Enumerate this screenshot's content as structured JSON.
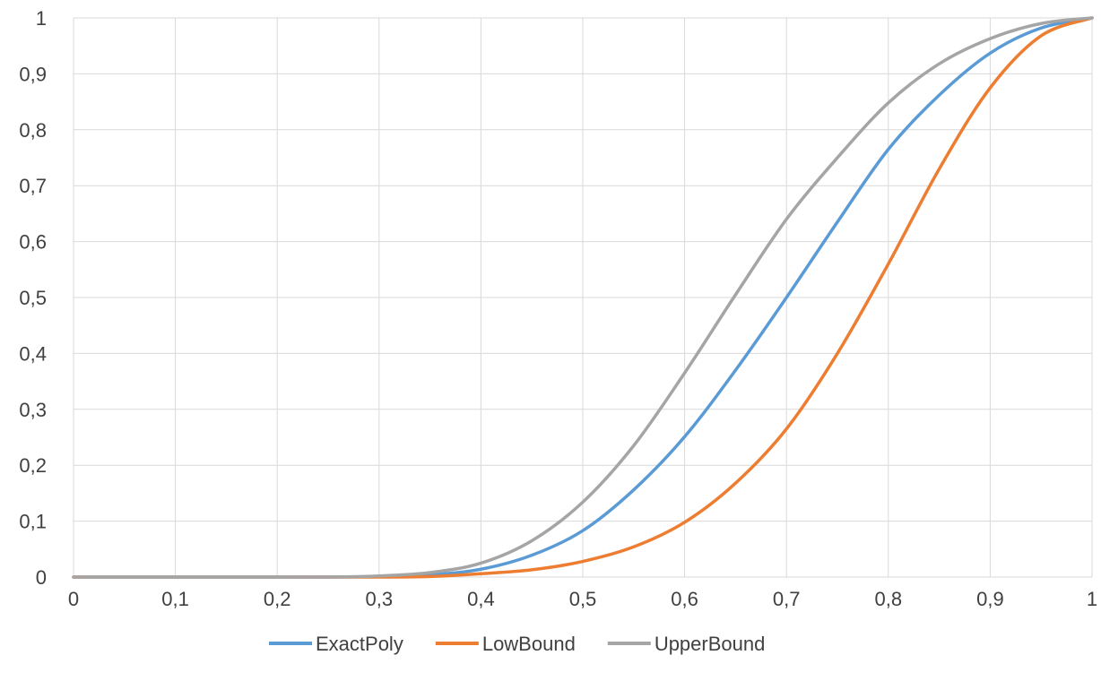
{
  "chart_data": {
    "type": "line",
    "title": "",
    "xlabel": "",
    "ylabel": "",
    "xlim": [
      0,
      1
    ],
    "ylim": [
      0,
      1
    ],
    "grid": true,
    "legend_position": "bottom",
    "x_ticks": [
      "0",
      "0,1",
      "0,2",
      "0,3",
      "0,4",
      "0,5",
      "0,6",
      "0,7",
      "0,8",
      "0,9",
      "1"
    ],
    "y_ticks": [
      "0",
      "0,1",
      "0,2",
      "0,3",
      "0,4",
      "0,5",
      "0,6",
      "0,7",
      "0,8",
      "0,9",
      "1"
    ],
    "x": [
      0,
      0.05,
      0.1,
      0.15,
      0.2,
      0.25,
      0.3,
      0.35,
      0.4,
      0.45,
      0.5,
      0.55,
      0.6,
      0.65,
      0.7,
      0.75,
      0.8,
      0.85,
      0.9,
      0.95,
      1
    ],
    "series": [
      {
        "name": "ExactPoly",
        "color": "#5B9BD5",
        "values": [
          0,
          0,
          0,
          0,
          0,
          0,
          0.001,
          0.004,
          0.014,
          0.039,
          0.083,
          0.156,
          0.251,
          0.37,
          0.5,
          0.635,
          0.765,
          0.862,
          0.937,
          0.982,
          1
        ]
      },
      {
        "name": "LowBound",
        "color": "#ED7D31",
        "values": [
          0,
          0,
          0,
          0,
          0,
          0,
          0,
          0.001,
          0.006,
          0.013,
          0.028,
          0.054,
          0.098,
          0.168,
          0.265,
          0.4,
          0.56,
          0.73,
          0.875,
          0.968,
          1
        ]
      },
      {
        "name": "UpperBound",
        "color": "#A5A5A5",
        "values": [
          0,
          0,
          0,
          0,
          0,
          0,
          0.002,
          0.008,
          0.025,
          0.065,
          0.134,
          0.235,
          0.365,
          0.505,
          0.64,
          0.75,
          0.848,
          0.918,
          0.963,
          0.99,
          1
        ]
      }
    ]
  }
}
